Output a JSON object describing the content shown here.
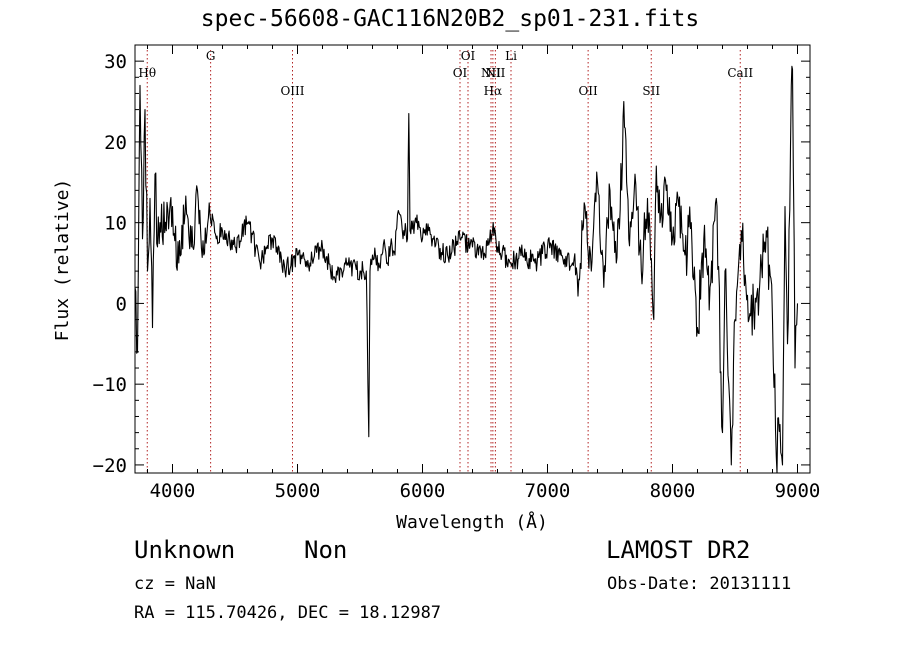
{
  "chart_data": {
    "type": "line",
    "title": "spec-56608-GAC116N20B2_sp01-231.fits",
    "xlabel": "Wavelength (Å)",
    "ylabel": "Flux (relative)",
    "xlim": [
      3700,
      9100
    ],
    "ylim": [
      -21,
      32
    ],
    "xticks": [
      4000,
      5000,
      6000,
      7000,
      8000,
      9000
    ],
    "yticks": [
      -20,
      -10,
      0,
      10,
      20,
      30
    ],
    "grid": false,
    "line_color": "#000000",
    "marker_color": "#b22222",
    "series": [
      {
        "x": [
          3700,
          3720,
          3740,
          3760,
          3780,
          3800,
          3820,
          3840,
          3860,
          3880,
          3900,
          3950,
          4000,
          4050,
          4100,
          4150,
          4200,
          4250,
          4300,
          4350,
          4400,
          4500,
          4600,
          4700,
          4800,
          4900,
          5000,
          5100,
          5200,
          5300,
          5400,
          5500,
          5550,
          5570,
          5580,
          5600,
          5650,
          5700,
          5720,
          5750,
          5780,
          5800,
          5850,
          5880,
          5890,
          5900,
          5950,
          6000,
          6050,
          6100,
          6200,
          6300,
          6400,
          6500,
          6560,
          6600,
          6700,
          6800,
          6900,
          7000,
          7100,
          7200,
          7250,
          7300,
          7350,
          7400,
          7450,
          7500,
          7550,
          7600,
          7610,
          7650,
          7700,
          7750,
          7800,
          7850,
          7870,
          7900,
          7950,
          8000,
          8050,
          8100,
          8150,
          8200,
          8250,
          8300,
          8350,
          8400,
          8420,
          8450,
          8470,
          8500,
          8550,
          8600,
          8650,
          8700,
          8750,
          8800,
          8830,
          8860,
          8880,
          8900,
          8920,
          8950,
          8960,
          8980,
          9000
        ],
        "y": [
          2,
          -6,
          27,
          8,
          24,
          4,
          13,
          -3,
          16,
          7,
          10,
          9,
          12,
          5,
          11,
          7,
          14,
          6,
          11,
          8,
          9,
          7,
          10,
          5,
          8,
          4,
          6,
          5,
          7,
          3,
          5,
          4,
          4,
          -16.5,
          4,
          6,
          5,
          7,
          5,
          8,
          6,
          11,
          9,
          8,
          23.5,
          9,
          10,
          8,
          9,
          7,
          6,
          8,
          7,
          6,
          9,
          7,
          5,
          6,
          5,
          7,
          6,
          5,
          3,
          12,
          4,
          15,
          2,
          14,
          5,
          18,
          25,
          8,
          16,
          4,
          13,
          -2,
          17,
          10,
          14,
          8,
          12,
          6,
          10,
          -3,
          8,
          2,
          13,
          -16,
          4,
          -10,
          -20,
          -2,
          9,
          1,
          -1,
          3,
          9,
          -2,
          -19,
          -15,
          -20,
          12,
          -5,
          27,
          29,
          -8,
          0
        ]
      }
    ],
    "line_markers": [
      {
        "label": "Hθ",
        "x": 3798,
        "row": 1
      },
      {
        "label": "G",
        "x": 4305,
        "row": 0
      },
      {
        "label": "OIII",
        "x": 4960,
        "row": 2
      },
      {
        "label": "OI",
        "x": 6300,
        "row": 1
      },
      {
        "label": "OI",
        "x": 6364,
        "row": 0
      },
      {
        "label": "NII",
        "x": 6548,
        "row": 1
      },
      {
        "label": "Hα",
        "x": 6563,
        "row": 2
      },
      {
        "label": "NII",
        "x": 6583,
        "row": 1
      },
      {
        "label": "Li",
        "x": 6708,
        "row": 0
      },
      {
        "label": "OII",
        "x": 7325,
        "row": 2
      },
      {
        "label": "SII",
        "x": 7830,
        "row": 2
      },
      {
        "label": "CaII",
        "x": 8542,
        "row": 1
      }
    ]
  },
  "footer": {
    "object_class": "Unknown",
    "object_subclass": "Non",
    "survey": "LAMOST DR2",
    "redshift": "cz = NaN",
    "obs_date": "Obs-Date: 20131111",
    "coordinates": "RA = 115.70426, DEC =  18.12987"
  }
}
